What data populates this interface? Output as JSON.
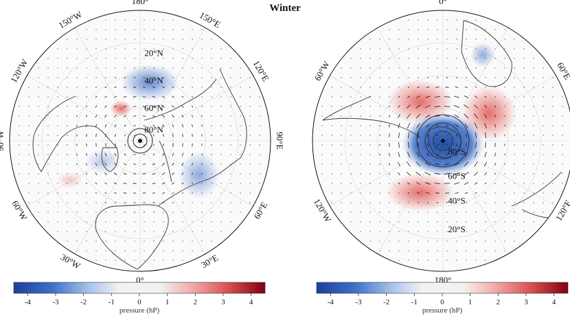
{
  "figure": {
    "title": "Winter"
  },
  "maps": [
    {
      "id": "north",
      "lon_labels": [
        "180°",
        "150°E",
        "120°E",
        "90°E",
        "60°E",
        "30°E",
        "0°",
        "30°W",
        "60°W",
        "90°W",
        "120°W",
        "150°W"
      ],
      "lat_labels": [
        "20°N",
        "40°N",
        "60°N",
        "80°N"
      ],
      "anomalies": [
        {
          "sign": "negative",
          "peak_hPa": -2.0,
          "label": "blue cell near 40°N, 180°"
        },
        {
          "sign": "positive",
          "peak_hPa": 0.8,
          "label": "pink cell near 60°N, 170°W"
        },
        {
          "sign": "negative",
          "peak_hPa": -1.3,
          "label": "blue cell near 50°N, 80°E"
        },
        {
          "sign": "negative",
          "peak_hPa": -0.8,
          "label": "blue cell near 60°N, 70°W"
        },
        {
          "sign": "positive",
          "peak_hPa": 0.5,
          "label": "pink cell near 40°N, 55°W"
        }
      ]
    },
    {
      "id": "south",
      "lon_labels": [
        "0°",
        "60°E",
        "120°E",
        "180°",
        "120°W",
        "60°W"
      ],
      "lat_labels": [
        "20°S",
        "40°S",
        "60°S",
        "80°S"
      ],
      "anomalies": [
        {
          "sign": "negative",
          "peak_hPa": -4.0,
          "label": "deep blue polar cap"
        },
        {
          "sign": "positive",
          "peak_hPa": 1.8,
          "label": "red cell near 50°S, 30°W"
        },
        {
          "sign": "positive",
          "peak_hPa": 1.7,
          "label": "red cell near 40°S, 80°E"
        },
        {
          "sign": "positive",
          "peak_hPa": 1.8,
          "label": "red cell near 45°S, 140°W"
        },
        {
          "sign": "negative",
          "peak_hPa": -1.0,
          "label": "blue cell over Africa"
        }
      ]
    }
  ],
  "colorbars": [
    {
      "label": "pressure (hP)",
      "ticks": [
        "-4",
        "-3",
        "-2",
        "-1",
        "0",
        "1",
        "2",
        "3",
        "4"
      ],
      "range": [
        -4.5,
        4.5
      ]
    },
    {
      "label": "pressure (hP)",
      "ticks": [
        "-4",
        "-3",
        "-2",
        "-1",
        "0",
        "1",
        "2",
        "3",
        "4"
      ],
      "range": [
        -4.5,
        4.5
      ]
    }
  ],
  "colors": {
    "negative": "#2f5fb8",
    "negative_deep": "#0d3c9e",
    "positive": "#d9534f",
    "positive_deep": "#8b0010",
    "coast": "#333333",
    "grid": "#9a9a9a"
  }
}
